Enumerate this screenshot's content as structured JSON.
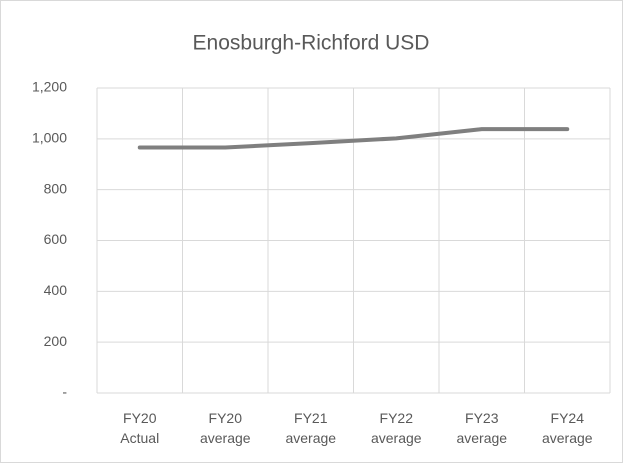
{
  "chart_data": {
    "type": "line",
    "title": "Enosburgh-Richford USD",
    "categories": [
      "FY20 Actual",
      "FY20 average",
      "FY21 average",
      "FY22 average",
      "FY23 average",
      "FY24 average"
    ],
    "values": [
      966,
      966,
      983,
      1002,
      1038,
      1038
    ],
    "color": "#7f7f7f",
    "ylim": [
      0,
      1200
    ],
    "yticks": [
      {
        "value": 0,
        "label": "-"
      },
      200,
      400,
      600,
      800,
      {
        "value": 1000,
        "label": "1,000"
      },
      {
        "value": 1200,
        "label": "1,200"
      }
    ],
    "grid": true
  }
}
